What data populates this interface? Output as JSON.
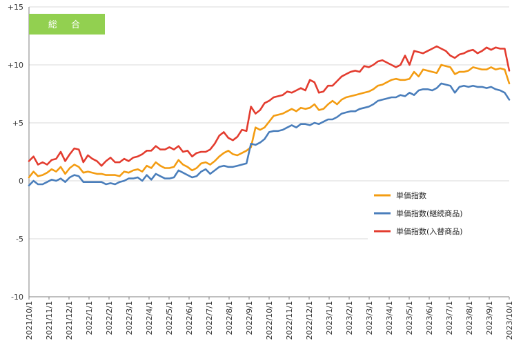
{
  "badge": {
    "label": "総 合",
    "color": "#92d050"
  },
  "colors": {
    "grid": "#d9d9d9",
    "axis": "#7f7f7f"
  },
  "chart_data": {
    "type": "line",
    "title": "総 合",
    "xlabel": "",
    "ylabel": "",
    "ylim": [
      -10,
      15
    ],
    "yticks": [
      15,
      10,
      5,
      0,
      -5,
      -10
    ],
    "ytick_labels": [
      "+15",
      "+10",
      "+5",
      "0",
      "-5",
      "-10"
    ],
    "grid": true,
    "legend_position": "right-middle",
    "x_start": "2021-10-01",
    "x_end": "2023-10-01",
    "x_labels": [
      "2021/10/1",
      "2021/11/1",
      "2021/12/1",
      "2022/1/1",
      "2022/2/1",
      "2022/3/1",
      "2022/4/1",
      "2022/5/1",
      "2022/6/1",
      "2022/7/1",
      "2022/8/1",
      "2022/9/1",
      "2022/10/1",
      "2022/11/1",
      "2022/12/1",
      "2023/1/1",
      "2023/2/1",
      "2023/3/1",
      "2023/4/1",
      "2023/5/1",
      "2023/6/1",
      "2023/7/1",
      "2023/8/1",
      "2023/9/1",
      "2023/10/1"
    ],
    "series": [
      {
        "name": "単価指数",
        "color": "#f39c12",
        "values": [
          0.3,
          0.8,
          0.4,
          0.5,
          0.7,
          1.0,
          0.8,
          1.2,
          0.6,
          1.1,
          1.4,
          1.2,
          0.7,
          0.8,
          0.7,
          0.6,
          0.6,
          0.5,
          0.5,
          0.5,
          0.4,
          0.8,
          0.7,
          0.9,
          1.0,
          0.8,
          1.3,
          1.1,
          1.6,
          1.3,
          1.1,
          1.1,
          1.2,
          1.8,
          1.4,
          1.2,
          0.9,
          1.1,
          1.5,
          1.6,
          1.4,
          1.7,
          2.1,
          2.4,
          2.6,
          2.3,
          2.2,
          2.4,
          2.6,
          2.9,
          4.6,
          4.4,
          4.6,
          5.1,
          5.6,
          5.7,
          5.8,
          6.0,
          6.2,
          6.0,
          6.3,
          6.2,
          6.3,
          6.6,
          6.1,
          6.2,
          6.6,
          6.9,
          6.6,
          7.0,
          7.2,
          7.3,
          7.4,
          7.5,
          7.6,
          7.7,
          7.9,
          8.2,
          8.3,
          8.5,
          8.7,
          8.8,
          8.7,
          8.7,
          8.8,
          9.4,
          9.0,
          9.6,
          9.5,
          9.4,
          9.3,
          10.0,
          9.9,
          9.8,
          9.2,
          9.4,
          9.4,
          9.5,
          9.8,
          9.7,
          9.6,
          9.6,
          9.8,
          9.6,
          9.7,
          9.6,
          8.4
        ]
      },
      {
        "name": "単価指数(継続商品)",
        "color": "#4a7ebb",
        "values": [
          -0.4,
          0.0,
          -0.3,
          -0.3,
          -0.1,
          0.1,
          0.0,
          0.2,
          -0.1,
          0.3,
          0.5,
          0.4,
          -0.1,
          -0.1,
          -0.1,
          -0.1,
          -0.1,
          -0.3,
          -0.2,
          -0.3,
          -0.1,
          0.0,
          0.2,
          0.2,
          0.3,
          0.0,
          0.5,
          0.1,
          0.6,
          0.4,
          0.2,
          0.2,
          0.3,
          0.9,
          0.7,
          0.5,
          0.3,
          0.4,
          0.8,
          1.0,
          0.6,
          0.9,
          1.2,
          1.3,
          1.2,
          1.2,
          1.3,
          1.4,
          1.5,
          3.2,
          3.1,
          3.3,
          3.6,
          4.2,
          4.3,
          4.3,
          4.4,
          4.6,
          4.8,
          4.6,
          4.9,
          4.9,
          4.8,
          5.0,
          4.9,
          5.1,
          5.3,
          5.3,
          5.5,
          5.8,
          5.9,
          6.0,
          6.0,
          6.2,
          6.3,
          6.4,
          6.6,
          6.9,
          7.0,
          7.1,
          7.2,
          7.2,
          7.4,
          7.3,
          7.6,
          7.4,
          7.8,
          7.9,
          7.9,
          7.8,
          8.0,
          8.4,
          8.3,
          8.2,
          7.6,
          8.1,
          8.2,
          8.1,
          8.2,
          8.1,
          8.1,
          8.0,
          8.1,
          7.9,
          7.8,
          7.6,
          7.0
        ]
      },
      {
        "name": "単価指数(入替商品)",
        "color": "#e33c2f",
        "values": [
          1.7,
          2.1,
          1.4,
          1.6,
          1.4,
          1.8,
          1.9,
          2.5,
          1.7,
          2.3,
          2.8,
          2.7,
          1.6,
          2.2,
          1.9,
          1.7,
          1.3,
          1.7,
          2.0,
          1.6,
          1.6,
          1.9,
          1.7,
          2.0,
          2.1,
          2.3,
          2.6,
          2.6,
          3.0,
          2.7,
          2.7,
          2.9,
          2.7,
          3.0,
          2.5,
          2.6,
          2.1,
          2.4,
          2.5,
          2.5,
          2.7,
          3.2,
          3.9,
          4.2,
          3.7,
          3.5,
          3.8,
          4.4,
          4.3,
          6.4,
          5.8,
          6.1,
          6.7,
          6.9,
          7.2,
          7.3,
          7.4,
          7.7,
          7.6,
          7.8,
          8.0,
          7.8,
          8.7,
          8.5,
          7.6,
          7.7,
          8.2,
          8.2,
          8.6,
          9.0,
          9.2,
          9.4,
          9.5,
          9.4,
          9.9,
          9.8,
          10.0,
          10.3,
          10.4,
          10.2,
          10.0,
          9.8,
          10.0,
          10.8,
          10.0,
          11.2,
          11.1,
          11.0,
          11.2,
          11.4,
          11.6,
          11.4,
          11.2,
          10.8,
          10.6,
          10.9,
          11.0,
          11.2,
          11.3,
          11.0,
          11.2,
          11.5,
          11.3,
          11.5,
          11.4,
          11.4,
          9.5
        ]
      }
    ]
  }
}
